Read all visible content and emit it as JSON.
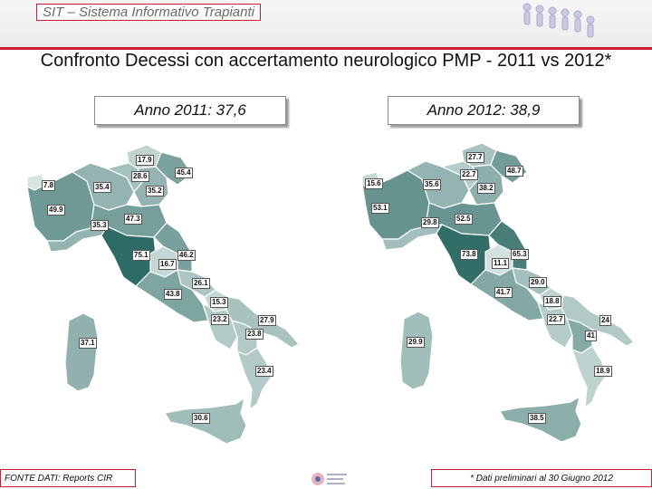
{
  "header": {
    "title": "SIT – Sistema Informativo Trapianti"
  },
  "slide": {
    "title": "Confronto Decessi con accertamento neurologico PMP - 2011 vs 2012*"
  },
  "maps": [
    {
      "year_label": "Anno 2011: 37,6",
      "regions": {
        "valle-aosta": 7.8,
        "piemonte": 49.9,
        "lombardia": 35.4,
        "trentino": 17.9,
        "alto-adige": 28.6,
        "veneto": 35.2,
        "friuli": 45.4,
        "liguria": 35.3,
        "emilia-romagna": 47.3,
        "toscana": 75.1,
        "umbria": 16.7,
        "marche": 46.2,
        "lazio": 43.8,
        "abruzzo": 26.1,
        "molise": 15.3,
        "campania": 23.2,
        "puglia": 27.9,
        "basilicata": 23.8,
        "calabria": 23.4,
        "sicilia": 30.6,
        "sardegna": 37.1
      },
      "labels": [
        "17.9",
        "28.6",
        "45.4",
        "7.8",
        "35.4",
        "35.2",
        "49.9",
        "35.3",
        "47.3",
        "75.1",
        "46.2",
        "16.7",
        "26.1",
        "43.8",
        "15.3",
        "23.2",
        "27.9",
        "23.8",
        "37.1",
        "23.4",
        "30.6"
      ]
    },
    {
      "year_label": "Anno 2012: 38,9",
      "regions": {
        "valle-aosta": 15.6,
        "piemonte": 53.1,
        "lombardia": 35.6,
        "trentino": 27.7,
        "alto-adige": 22.7,
        "veneto": 38.2,
        "friuli": 48.7,
        "liguria": 29.8,
        "emilia-romagna": 52.5,
        "toscana": 73.8,
        "umbria": 11.1,
        "marche": 65.3,
        "lazio": 41.7,
        "abruzzo": 29.0,
        "molise": 18.8,
        "campania": 22.7,
        "puglia": 24,
        "basilicata": 41,
        "calabria": 18.9,
        "sicilia": 38.5,
        "sardegna": 29.9
      },
      "labels": [
        "27.7",
        "22.7",
        "48.7",
        "15.6",
        "35.6",
        "38.2",
        "53.1",
        "29.8",
        "52.5",
        "73.8",
        "65.3",
        "11.1",
        "29.0",
        "41.7",
        "18.8",
        "22.7",
        "24",
        "41",
        "29.9",
        "18.9",
        "38.5"
      ]
    }
  ],
  "legend_note": "",
  "colors": {
    "accent": "#cc1f2e",
    "map_dark": "#2f6b66",
    "map_light": "#d5e3e1"
  },
  "footer": {
    "source": "FONTE DATI: Reports CIR",
    "note": "* Dati preliminari al 30 Giugno 2012"
  }
}
